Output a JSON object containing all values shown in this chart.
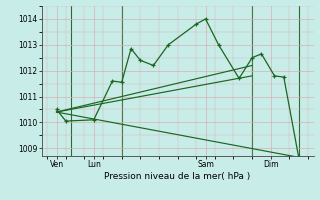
{
  "xlabel": "Pression niveau de la mer( hPa )",
  "bg_color": "#c8ede8",
  "grid_color": "#d8b0b0",
  "line_color": "#1a6620",
  "vline_color": "#336633",
  "ylim": [
    1008.7,
    1014.3
  ],
  "yticks": [
    1009,
    1010,
    1011,
    1012,
    1013,
    1014
  ],
  "xlim": [
    -0.3,
    14.3
  ],
  "day_positions": [
    0.5,
    2.5,
    8.5,
    12.0
  ],
  "day_labels": [
    "Ven",
    "Lun",
    "Sam",
    "Dim"
  ],
  "vlines": [
    1.3,
    4.0,
    11.0,
    13.5
  ],
  "main_line": {
    "x": [
      0.5,
      1.0,
      2.5,
      3.5,
      4.0,
      4.5,
      5.0,
      5.7,
      6.5,
      8.0,
      8.5,
      9.2,
      10.3,
      11.0,
      11.5,
      12.2,
      12.7,
      13.5
    ],
    "y": [
      1010.5,
      1010.05,
      1010.1,
      1011.6,
      1011.55,
      1012.85,
      1012.4,
      1012.2,
      1013.0,
      1013.8,
      1014.0,
      1013.0,
      1011.7,
      1012.5,
      1012.65,
      1011.8,
      1011.75,
      1008.65
    ]
  },
  "trend1": {
    "x": [
      0.5,
      11.0
    ],
    "y": [
      1010.4,
      1012.2
    ]
  },
  "trend2": {
    "x": [
      0.5,
      11.0
    ],
    "y": [
      1010.4,
      1011.8
    ]
  },
  "trend3": {
    "x": [
      0.5,
      13.5
    ],
    "y": [
      1010.4,
      1008.65
    ]
  }
}
